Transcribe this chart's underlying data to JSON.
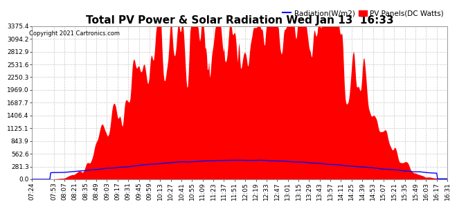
{
  "title": "Total PV Power & Solar Radiation Wed Jan 13  16:33",
  "copyright": "Copyright 2021 Cartronics.com",
  "legend_radiation": "Radiation(W/m2)",
  "legend_pv": "PV Panels(DC Watts)",
  "ymax": 3375.4,
  "yticks": [
    0.0,
    281.3,
    562.6,
    843.9,
    1125.1,
    1406.4,
    1687.7,
    1969.0,
    2250.3,
    2531.6,
    2812.9,
    3094.2,
    3375.4
  ],
  "bg_color": "#ffffff",
  "grid_color": "#c8c8c8",
  "fill_color": "#ff0000",
  "line_color_radiation": "#0000ff",
  "title_fontsize": 11,
  "tick_fontsize": 6.5,
  "copyright_fontsize": 6,
  "legend_fontsize": 7.5
}
